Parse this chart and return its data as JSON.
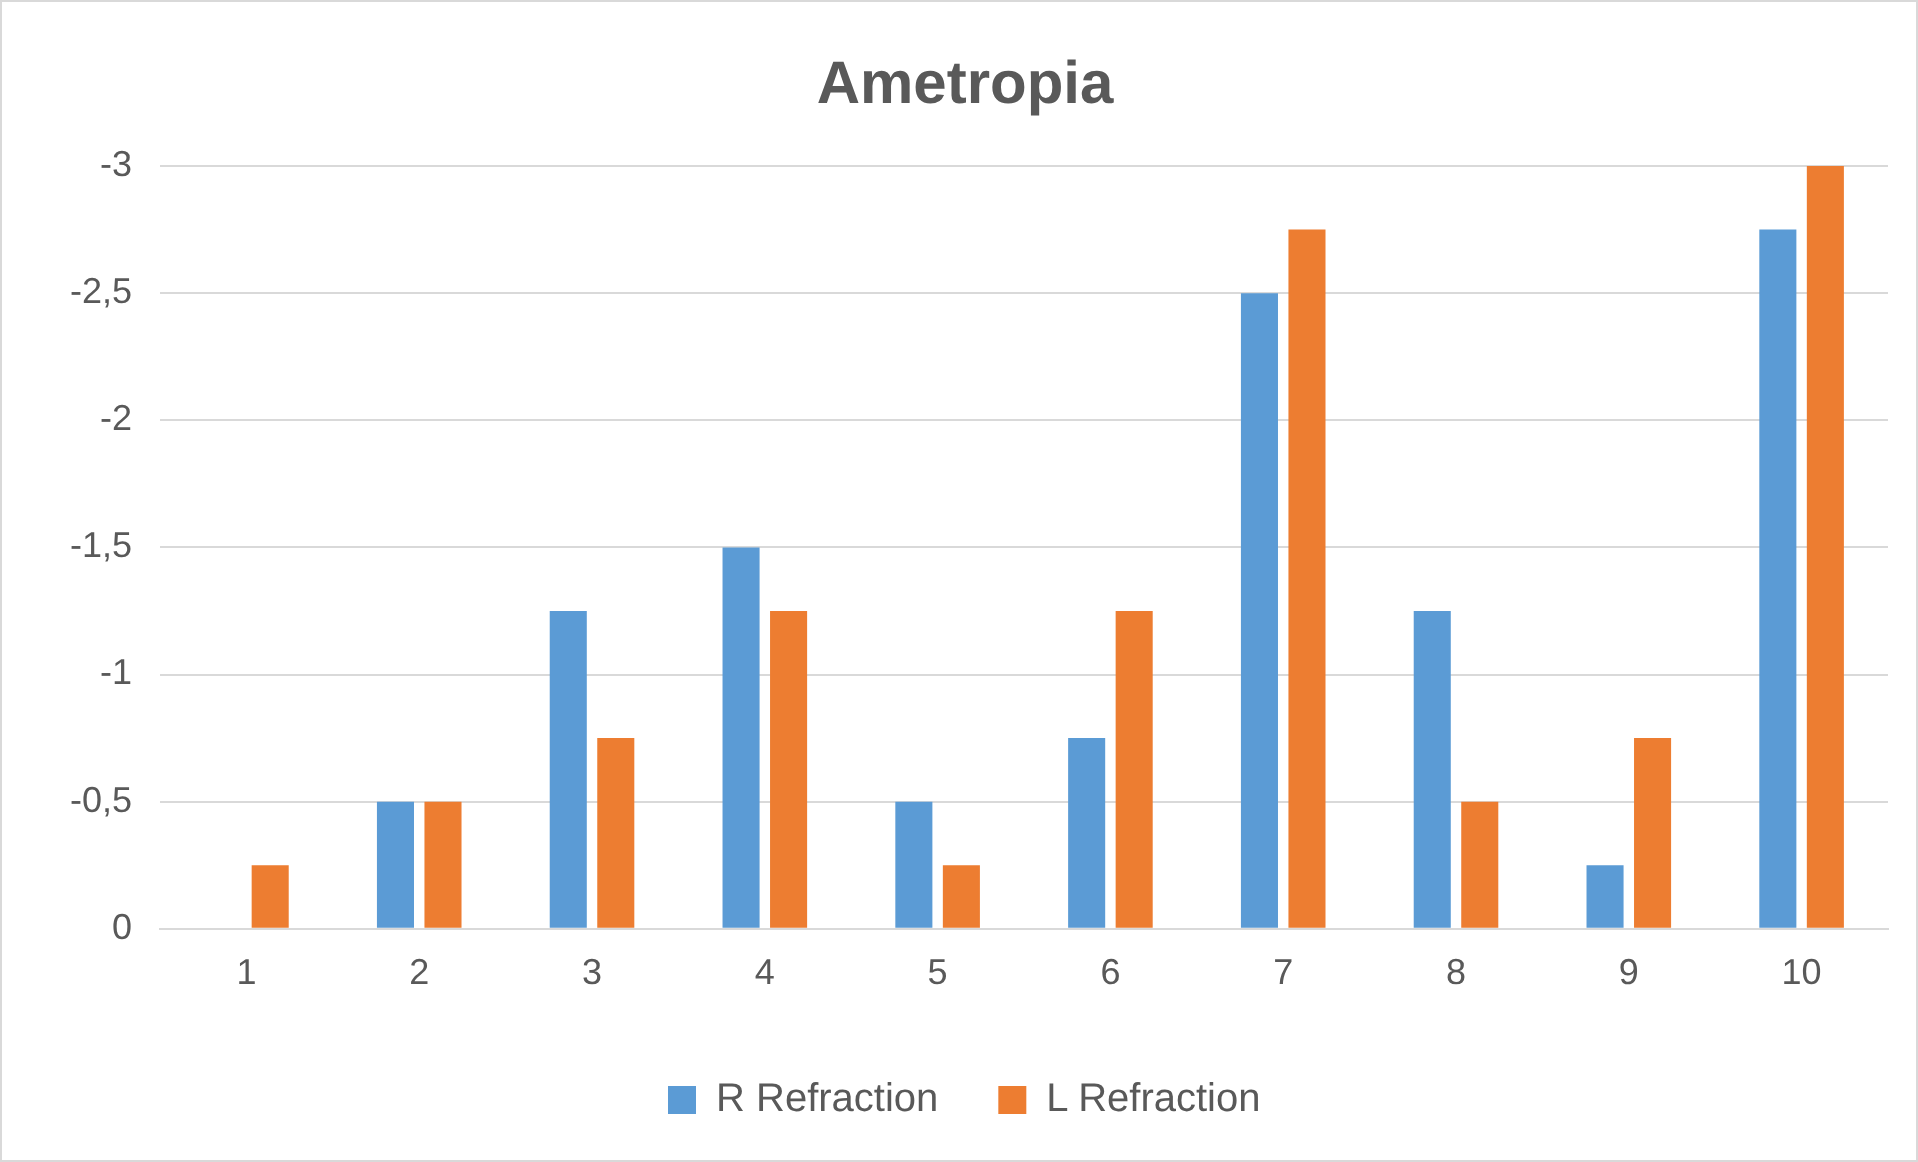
{
  "chart_data": {
    "type": "bar",
    "title": "Ametropia",
    "categories": [
      "1",
      "2",
      "3",
      "4",
      "5",
      "6",
      "7",
      "8",
      "9",
      "10"
    ],
    "series": [
      {
        "name": "R Refraction",
        "color": "#5b9bd5",
        "values": [
          0,
          -0.5,
          -1.25,
          -1.5,
          -0.5,
          -0.75,
          -2.5,
          -1.25,
          -0.25,
          -2.75
        ]
      },
      {
        "name": "L Refraction",
        "color": "#ed7d31",
        "values": [
          -0.25,
          -0.5,
          -0.75,
          -1.25,
          -0.25,
          -1.25,
          -2.75,
          -0.5,
          -0.75,
          -3
        ]
      }
    ],
    "ylim": [
      0,
      -3
    ],
    "yticks": [
      0,
      {
        "value": -0.5,
        "label": "-0,5"
      },
      -1,
      {
        "value": -1.5,
        "label": "-1,5"
      },
      -2,
      {
        "value": -2.5,
        "label": "-2,5"
      },
      -3
    ],
    "grid": "y",
    "legend": "bottom"
  }
}
